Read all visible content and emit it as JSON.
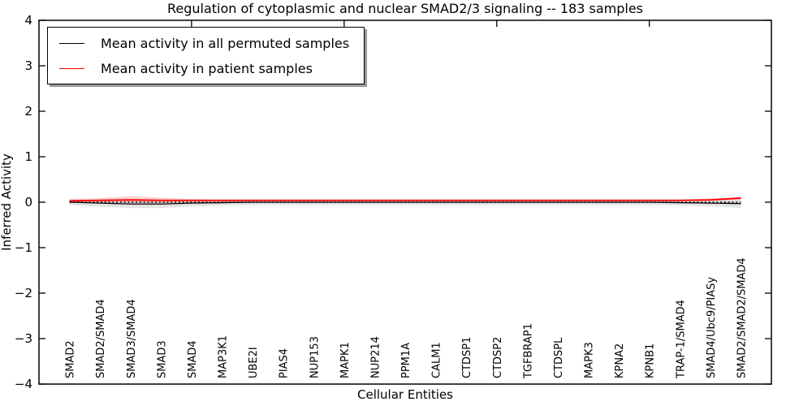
{
  "figure": {
    "title": "Regulation of cytoplasmic and nuclear SMAD2/3 signaling -- 183 samples",
    "xlabel": "Cellular Entities",
    "ylabel": "Inferred Activity"
  },
  "legend": {
    "entries": [
      {
        "label": "Mean activity in all permuted samples",
        "color": "#000000"
      },
      {
        "label": "Mean activity in patient samples",
        "color": "#ff0000"
      }
    ]
  },
  "chart_data": {
    "type": "line",
    "title": "Regulation of cytoplasmic and nuclear SMAD2/3 signaling -- 183 samples",
    "xlabel": "Cellular Entities",
    "ylabel": "Inferred Activity",
    "ylim": [
      -4,
      4
    ],
    "yticks": [
      -4,
      -3,
      -2,
      -1,
      0,
      1,
      2,
      3,
      4
    ],
    "ytick_labels": [
      "−4",
      "−3",
      "−2",
      "−1",
      "0",
      "1",
      "2",
      "3",
      "4"
    ],
    "xlim": [
      0,
      24
    ],
    "top_xticks": [
      5,
      10,
      15,
      20
    ],
    "grid": false,
    "legend_position": "upper left",
    "categories": [
      "SMAD2",
      "SMAD2/SMAD4",
      "SMAD3/SMAD4",
      "SMAD3",
      "SMAD4",
      "MAP3K1",
      "UBE2I",
      "PIAS4",
      "NUP153",
      "MAPK1",
      "NUP214",
      "PPM1A",
      "CALM1",
      "CTDSP1",
      "CTDSP2",
      "TGFBRAP1",
      "CTDSPL",
      "MAPK3",
      "KPNA2",
      "KPNB1",
      "TRAP-1/SMAD4",
      "SMAD4/Ubc9/PIASy",
      "SMAD2/SMAD2/SMAD4"
    ],
    "series": [
      {
        "name": "Mean activity in all permuted samples",
        "color": "#000000",
        "values": [
          0.0,
          -0.02,
          -0.04,
          -0.04,
          -0.02,
          -0.01,
          0.0,
          0.0,
          0.0,
          0.0,
          0.0,
          0.0,
          0.0,
          0.0,
          0.0,
          0.0,
          0.0,
          0.0,
          0.0,
          0.0,
          -0.01,
          -0.02,
          -0.03
        ]
      },
      {
        "name": "Mean activity in patient samples",
        "color": "#ff0000",
        "values": [
          0.03,
          0.04,
          0.05,
          0.04,
          0.04,
          0.04,
          0.04,
          0.04,
          0.04,
          0.04,
          0.04,
          0.04,
          0.04,
          0.04,
          0.04,
          0.04,
          0.04,
          0.04,
          0.04,
          0.04,
          0.04,
          0.05,
          0.09
        ]
      }
    ],
    "bands": [
      {
        "name": "permuted-samples-range",
        "color": "rgba(0,0,0,0.11)",
        "upper": [
          0.05,
          0.06,
          0.06,
          0.06,
          0.05,
          0.05,
          0.05,
          0.05,
          0.05,
          0.05,
          0.05,
          0.05,
          0.05,
          0.05,
          0.05,
          0.05,
          0.05,
          0.05,
          0.05,
          0.05,
          0.05,
          0.06,
          0.06
        ],
        "lower": [
          -0.06,
          -0.1,
          -0.13,
          -0.13,
          -0.09,
          -0.07,
          -0.06,
          -0.06,
          -0.06,
          -0.06,
          -0.06,
          -0.06,
          -0.06,
          -0.06,
          -0.06,
          -0.06,
          -0.06,
          -0.06,
          -0.06,
          -0.06,
          -0.07,
          -0.09,
          -0.13
        ]
      },
      {
        "name": "patient-samples-range",
        "color": "rgba(255,0,0,0.18)",
        "upper": [
          0.07,
          0.09,
          0.13,
          0.1,
          0.07,
          0.06,
          0.06,
          0.06,
          0.06,
          0.06,
          0.06,
          0.06,
          0.06,
          0.06,
          0.06,
          0.06,
          0.06,
          0.06,
          0.06,
          0.06,
          0.06,
          0.08,
          0.12
        ],
        "lower": [
          0.0,
          -0.01,
          -0.02,
          -0.02,
          -0.01,
          0.01,
          0.02,
          0.02,
          0.02,
          0.02,
          0.02,
          0.02,
          0.02,
          0.02,
          0.02,
          0.02,
          0.02,
          0.02,
          0.02,
          0.02,
          0.02,
          0.03,
          0.05
        ]
      }
    ],
    "zero_line": {
      "y": 0,
      "style": "dotted",
      "color": "#000000"
    }
  }
}
